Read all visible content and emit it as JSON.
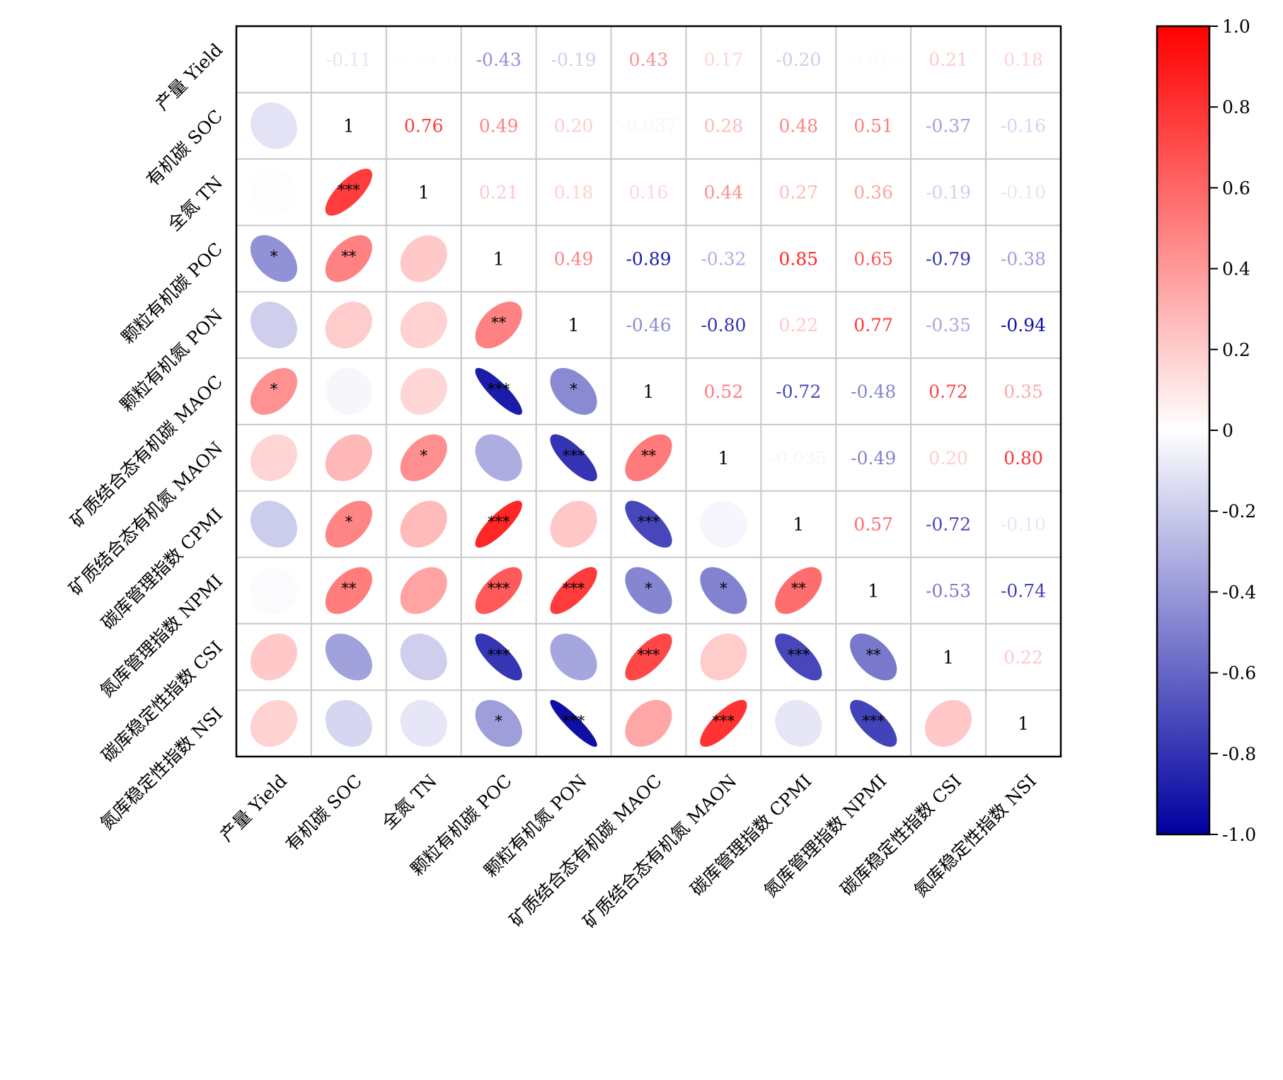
{
  "chart_data": {
    "type": "heatmap",
    "subtype": "correlation-matrix",
    "variables": [
      "产量 Yield",
      "有机碳 SOC",
      "全氮 TN",
      "颗粒有机碳 POC",
      "颗粒有机氮 PON",
      "矿质结合态有机碳 MAOC",
      "矿质结合态有机氮 MAON",
      "碳库管理指数 CPMI",
      "氮库管理指数 NPMI",
      "碳库稳定性指数 CSI",
      "氮库稳定性指数 NSI"
    ],
    "upper_labels": [
      [
        "",
        "-0.11",
        "-0.0070",
        "-0.43",
        "-0.19",
        "0.43",
        "0.17",
        "-0.20",
        "-0.015",
        "0.21",
        "0.18"
      ],
      [
        "",
        "1",
        "0.76",
        "0.49",
        "0.20",
        "-0.037",
        "0.28",
        "0.48",
        "0.51",
        "-0.37",
        "-0.16"
      ],
      [
        "",
        "",
        "1",
        "0.21",
        "0.18",
        "0.16",
        "0.44",
        "0.27",
        "0.36",
        "-0.19",
        "-0.10"
      ],
      [
        "",
        "",
        "",
        "1",
        "0.49",
        "-0.89",
        "-0.32",
        "0.85",
        "0.65",
        "-0.79",
        "-0.38"
      ],
      [
        "",
        "",
        "",
        "",
        "1",
        "-0.46",
        "-0.80",
        "0.22",
        "0.77",
        "-0.35",
        "-0.94"
      ],
      [
        "",
        "",
        "",
        "",
        "",
        "1",
        "0.52",
        "-0.72",
        "-0.48",
        "0.72",
        "0.35"
      ],
      [
        "",
        "",
        "",
        "",
        "",
        "",
        "1",
        "-0.035",
        "-0.49",
        "0.20",
        "0.80"
      ],
      [
        "",
        "",
        "",
        "",
        "",
        "",
        "",
        "1",
        "0.57",
        "-0.72",
        "-0.10"
      ],
      [
        "",
        "",
        "",
        "",
        "",
        "",
        "",
        "",
        "1",
        "-0.53",
        "-0.74"
      ],
      [
        "",
        "",
        "",
        "",
        "",
        "",
        "",
        "",
        "",
        "1",
        "0.22"
      ],
      [
        "",
        "",
        "",
        "",
        "",
        "",
        "",
        "",
        "",
        "",
        "1"
      ]
    ],
    "significance": [
      [
        "",
        "",
        "",
        "",
        "",
        "",
        "",
        "",
        "",
        "",
        ""
      ],
      [
        "",
        "",
        "",
        "",
        "",
        "",
        "",
        "",
        "",
        "",
        ""
      ],
      [
        "",
        "***",
        "",
        "",
        "",
        "",
        "",
        "",
        "",
        "",
        ""
      ],
      [
        "*",
        "**",
        "",
        "",
        "",
        "",
        "",
        "",
        "",
        "",
        ""
      ],
      [
        "",
        "",
        "",
        "**",
        "",
        "",
        "",
        "",
        "",
        "",
        ""
      ],
      [
        "*",
        "",
        "",
        "***",
        "*",
        "",
        "",
        "",
        "",
        "",
        ""
      ],
      [
        "",
        "",
        "*",
        "",
        "***",
        "**",
        "",
        "",
        "",
        "",
        ""
      ],
      [
        "",
        "*",
        "",
        "***",
        "",
        "***",
        "",
        "",
        "",
        "",
        ""
      ],
      [
        "",
        "**",
        "",
        "***",
        "***",
        "*",
        "*",
        "**",
        "",
        "",
        ""
      ],
      [
        "",
        "",
        "",
        "***",
        "",
        "***",
        "",
        "***",
        "**",
        "",
        ""
      ],
      [
        "",
        "",
        "",
        "*",
        "***",
        "",
        "***",
        "",
        "***",
        "",
        ""
      ]
    ],
    "colorbar": {
      "min": -1.0,
      "max": 1.0,
      "ticks": [
        "1.0",
        "0.8",
        "0.6",
        "0.4",
        "0.2",
        "0",
        "-0.2",
        "-0.4",
        "-0.6",
        "-0.8",
        "-1.0"
      ],
      "colors": {
        "low": "#0000a0",
        "mid": "#ffffff",
        "high": "#ff0000"
      }
    }
  }
}
